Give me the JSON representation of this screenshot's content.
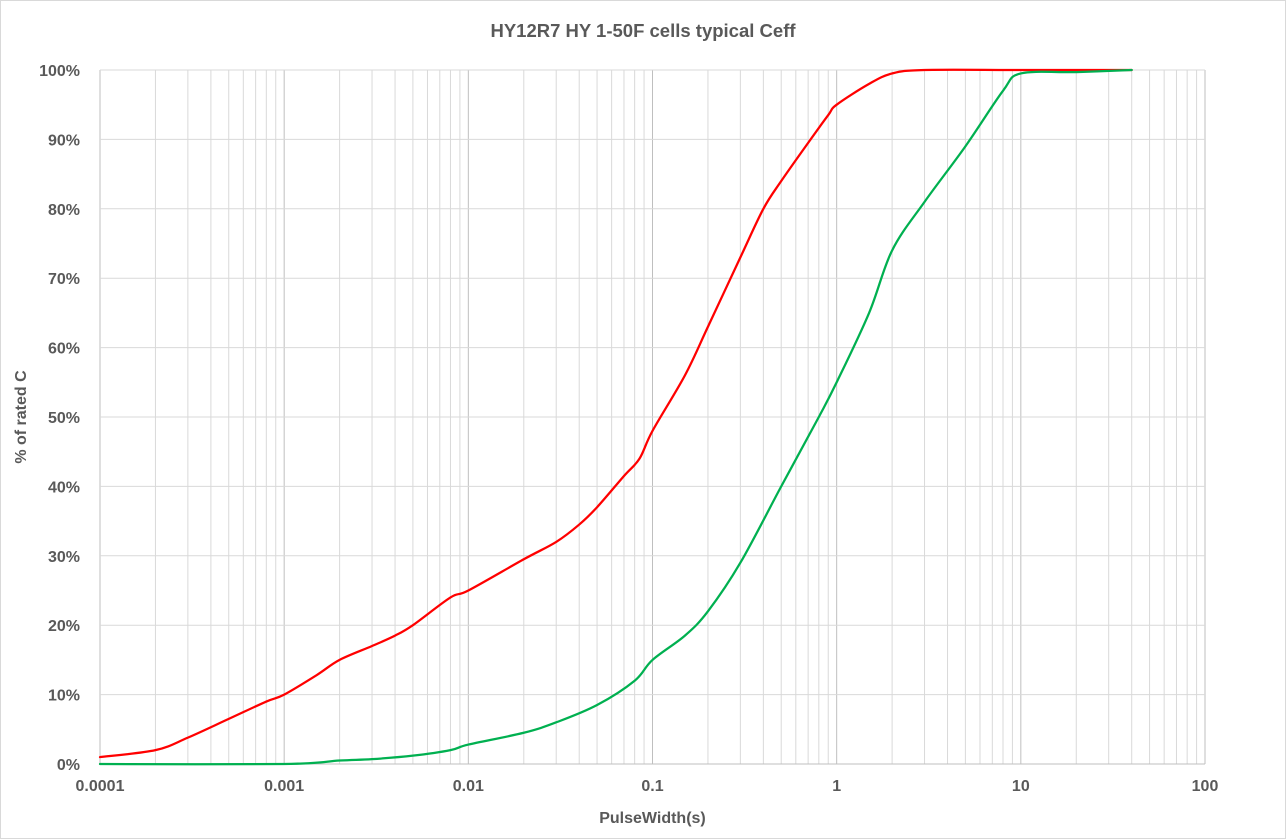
{
  "chart_data": {
    "type": "line",
    "title": "HY12R7 HY 1-50F cells typical Ceff",
    "xlabel": "PulseWidth(s)",
    "ylabel": "% of rated C",
    "x_scale": "log",
    "xlim": [
      0.0001,
      100
    ],
    "ylim": [
      0,
      100
    ],
    "x_ticks": [
      "0.0001",
      "0.001",
      "0.01",
      "0.1",
      "1",
      "10",
      "100"
    ],
    "y_ticks": [
      "0%",
      "10%",
      "20%",
      "30%",
      "40%",
      "50%",
      "60%",
      "70%",
      "80%",
      "90%",
      "100%"
    ],
    "grid": true,
    "legend": "none",
    "series": [
      {
        "color": "#ff0000",
        "points": [
          [
            0.0001,
            1.0
          ],
          [
            0.0002,
            2.0
          ],
          [
            0.0003,
            3.8
          ],
          [
            0.0005,
            6.5
          ],
          [
            0.0008,
            9.0
          ],
          [
            0.001,
            10.0
          ],
          [
            0.0015,
            12.8
          ],
          [
            0.002,
            15.0
          ],
          [
            0.003,
            17.0
          ],
          [
            0.004,
            18.5
          ],
          [
            0.005,
            20.0
          ],
          [
            0.008,
            24.0
          ],
          [
            0.01,
            25.0
          ],
          [
            0.02,
            29.5
          ],
          [
            0.03,
            32.0
          ],
          [
            0.04,
            34.5
          ],
          [
            0.05,
            37.0
          ],
          [
            0.07,
            41.5
          ],
          [
            0.085,
            44.0
          ],
          [
            0.1,
            48.0
          ],
          [
            0.15,
            56.0
          ],
          [
            0.2,
            63.0
          ],
          [
            0.3,
            73.0
          ],
          [
            0.4,
            80.0
          ],
          [
            0.5,
            84.0
          ],
          [
            0.7,
            89.5
          ],
          [
            0.9,
            93.5
          ],
          [
            1.0,
            95.0
          ],
          [
            1.5,
            98.0
          ],
          [
            2.0,
            99.5
          ],
          [
            3.0,
            100.0
          ],
          [
            10.0,
            100.0
          ],
          [
            40.0,
            100.0
          ]
        ]
      },
      {
        "color": "#00b050",
        "points": [
          [
            0.0001,
            0.0
          ],
          [
            0.001,
            0.0
          ],
          [
            0.002,
            0.5
          ],
          [
            0.003,
            0.7
          ],
          [
            0.005,
            1.2
          ],
          [
            0.008,
            2.0
          ],
          [
            0.01,
            2.8
          ],
          [
            0.02,
            4.5
          ],
          [
            0.03,
            6.0
          ],
          [
            0.05,
            8.5
          ],
          [
            0.08,
            12.0
          ],
          [
            0.1,
            15.0
          ],
          [
            0.15,
            18.5
          ],
          [
            0.2,
            22.0
          ],
          [
            0.3,
            29.0
          ],
          [
            0.5,
            40.0
          ],
          [
            0.8,
            50.0
          ],
          [
            1.0,
            55.0
          ],
          [
            1.5,
            65.0
          ],
          [
            2.0,
            74.0
          ],
          [
            3.0,
            81.0
          ],
          [
            5.0,
            89.0
          ],
          [
            8.0,
            97.0
          ],
          [
            10.0,
            99.5
          ],
          [
            20.0,
            99.7
          ],
          [
            40.0,
            100.0
          ]
        ]
      }
    ]
  }
}
